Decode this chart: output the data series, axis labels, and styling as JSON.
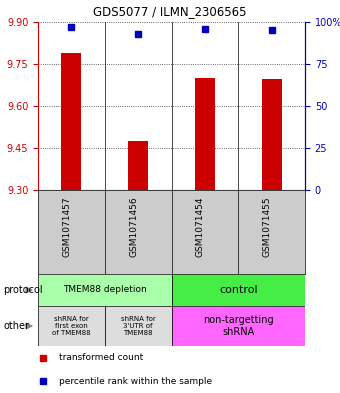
{
  "title": "GDS5077 / ILMN_2306565",
  "samples": [
    "GSM1071457",
    "GSM1071456",
    "GSM1071454",
    "GSM1071455"
  ],
  "bar_values": [
    9.79,
    9.475,
    9.7,
    9.695
  ],
  "bar_base": 9.3,
  "percentile_values": [
    97,
    93,
    96,
    95
  ],
  "ylim": [
    9.3,
    9.9
  ],
  "yticks_left": [
    9.3,
    9.45,
    9.6,
    9.75,
    9.9
  ],
  "yticks_right": [
    0,
    25,
    50,
    75,
    100
  ],
  "bar_color": "#cc0000",
  "dot_color": "#0000bb",
  "protocol_light_green": "#aaffaa",
  "protocol_green": "#44ee44",
  "other_light": "#dddddd",
  "other_pink": "#ff66ff",
  "sample_bg": "#cccccc",
  "legend_red": "transformed count",
  "legend_blue": "percentile rank within the sample"
}
